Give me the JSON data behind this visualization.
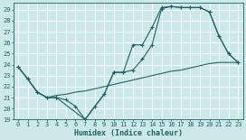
{
  "xlabel": "Humidex (Indice chaleur)",
  "bg_color": "#cce8e8",
  "grid_color": "#ffffff",
  "line_color": "#1a6666",
  "xlim": [
    -0.5,
    23.5
  ],
  "ylim": [
    19,
    29.6
  ],
  "yticks": [
    19,
    20,
    21,
    22,
    23,
    24,
    25,
    26,
    27,
    28,
    29
  ],
  "xticks": [
    0,
    1,
    2,
    3,
    4,
    5,
    6,
    7,
    8,
    9,
    10,
    11,
    12,
    13,
    14,
    15,
    16,
    17,
    18,
    19,
    20,
    21,
    22,
    23
  ],
  "line1_x": [
    0,
    1,
    2,
    3,
    4,
    5,
    6,
    7,
    8,
    9,
    10,
    11,
    12,
    13,
    14,
    15,
    16,
    17,
    18,
    19,
    20,
    21,
    22,
    23
  ],
  "line1_y": [
    23.8,
    22.7,
    21.5,
    21.0,
    21.0,
    20.8,
    20.2,
    19.0,
    20.2,
    21.3,
    23.3,
    23.3,
    25.8,
    25.8,
    27.4,
    29.2,
    29.3,
    29.2,
    29.2,
    29.2,
    28.8,
    26.6,
    25.0,
    24.2
  ],
  "line2_x": [
    0,
    1,
    2,
    3,
    4,
    7,
    9,
    10,
    11,
    12,
    13,
    14,
    15,
    16,
    17,
    18,
    19,
    20,
    21,
    22,
    23
  ],
  "line2_y": [
    23.8,
    22.7,
    21.5,
    21.0,
    21.0,
    19.0,
    21.3,
    23.3,
    23.3,
    23.5,
    24.5,
    25.8,
    29.1,
    29.3,
    29.2,
    29.2,
    29.2,
    28.8,
    26.6,
    25.0,
    24.2
  ],
  "line3_x": [
    0,
    1,
    2,
    3,
    4,
    5,
    6,
    7,
    8,
    9,
    10,
    11,
    12,
    13,
    14,
    15,
    16,
    17,
    18,
    19,
    20,
    21,
    22,
    23
  ],
  "line3_y": [
    23.8,
    22.7,
    21.5,
    21.0,
    21.2,
    21.3,
    21.5,
    21.6,
    21.8,
    22.0,
    22.2,
    22.4,
    22.6,
    22.8,
    23.0,
    23.2,
    23.4,
    23.5,
    23.7,
    23.9,
    24.1,
    24.2,
    24.2,
    24.2
  ],
  "linewidth": 0.8,
  "markersize": 3.5,
  "marker": "+"
}
